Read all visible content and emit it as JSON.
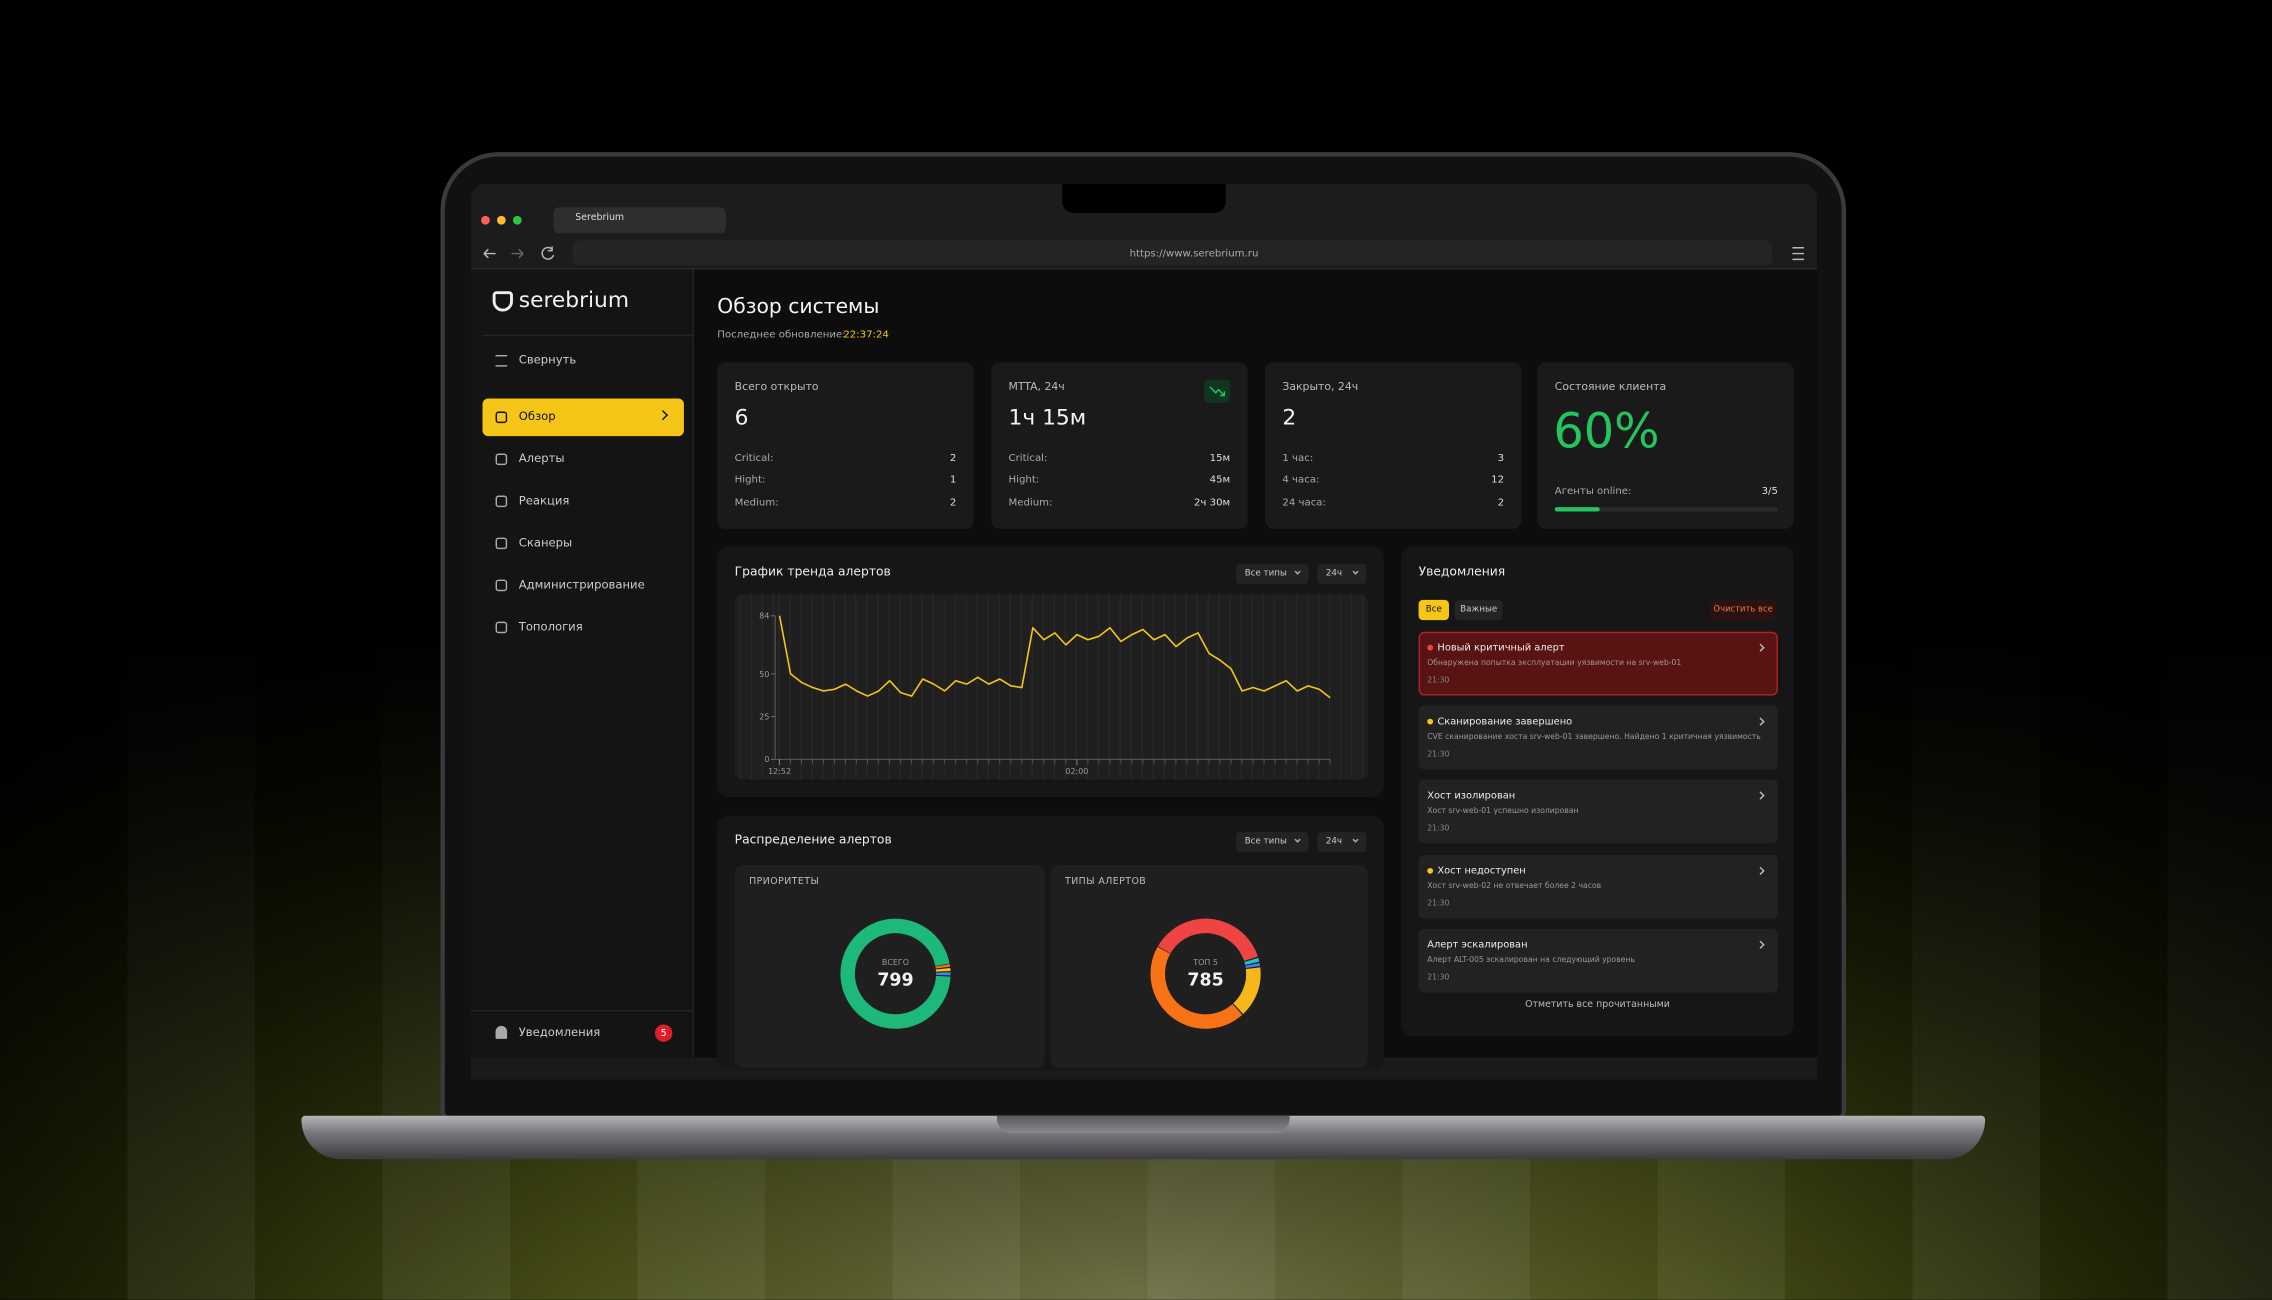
{
  "browser": {
    "tab_title": "Serebrium",
    "url": "https://www.serebrium.ru"
  },
  "sidebar": {
    "logo": "serebrium",
    "collapse": "Свернуть",
    "items": [
      "Обзор",
      "Алерты",
      "Реакция",
      "Сканеры",
      "Администрирование",
      "Топология"
    ],
    "notifications": "Уведомления",
    "badge": 5
  },
  "header": {
    "title": "Обзор системы",
    "updated_label": "Последнее обновление:",
    "updated_time": "22:37:24"
  },
  "cards": [
    {
      "label": "Всего открыто",
      "value": 6,
      "rows": [
        {
          "label": "Critical:",
          "value": 2
        },
        {
          "label": "Hight:",
          "value": 1
        },
        {
          "label": "Medium:",
          "value": 2
        }
      ]
    },
    {
      "label": "MTTA, 24ч",
      "value": "1ч 15м",
      "rows": [
        {
          "label": "Critical:",
          "value": "15м"
        },
        {
          "label": "Hight:",
          "value": "45м"
        },
        {
          "label": "Medium:",
          "value": "2ч 30м"
        }
      ]
    },
    {
      "label": "Закрыто, 24ч",
      "value": 2,
      "rows": [
        {
          "label": "1 час:",
          "value": 3
        },
        {
          "label": "4 часа:",
          "value": 12
        },
        {
          "label": "24 часа:",
          "value": 2
        }
      ]
    }
  ],
  "client": {
    "label": "Состояние клиента",
    "value": "60%",
    "agents_label": "Агенты online:",
    "agents": "3/5"
  },
  "trend": {
    "title": "График тренда алертов",
    "filters": [
      "Все типы",
      "24ч"
    ],
    "color": "#f5c518",
    "ylim": [
      0,
      84
    ],
    "yticks": [
      0,
      25,
      50,
      84
    ],
    "xticks": [
      {
        "value": 0,
        "label": "12:52"
      },
      {
        "value": 27,
        "label": "02:00"
      }
    ],
    "values": [
      84,
      50,
      45,
      42,
      40,
      41,
      44,
      40,
      37,
      40,
      46,
      39,
      37,
      47,
      44,
      40,
      46,
      44,
      48,
      44,
      47,
      43,
      42,
      77,
      70,
      74,
      67,
      73,
      70,
      72,
      77,
      69,
      73,
      76,
      70,
      73,
      66,
      71,
      74,
      62,
      58,
      53,
      40,
      42,
      40,
      43,
      46,
      40,
      43,
      41,
      36
    ]
  },
  "distribution": {
    "title": "Распределение алертов",
    "filters": [
      "Все типы",
      "24ч"
    ],
    "priorities": {
      "title": "ПРИОРИТЕТЫ",
      "center_label": "ВСЕГО",
      "total": 799,
      "segments": [
        {
          "color": "#f97316",
          "value": 9
        },
        {
          "color": "#f5c518",
          "value": 10
        },
        {
          "color": "#3b82f6",
          "value": 10
        },
        {
          "color": "#1db97a",
          "value": 770
        }
      ]
    },
    "types": {
      "title": "ТИПЫ АЛЕРТОВ",
      "center_label": "ТОП 5",
      "total": 785,
      "segments": [
        {
          "color": "#ef4444",
          "value": 290
        },
        {
          "color": "#22c5c5",
          "value": 12
        },
        {
          "color": "#3b82f6",
          "value": 10
        },
        {
          "color": "#f5b71a",
          "value": 120
        },
        {
          "color": "#f97316",
          "value": 353
        }
      ]
    }
  },
  "notifications": {
    "title": "Уведомления",
    "tabs": [
      "Все",
      "Важные"
    ],
    "clear": "Очистить все",
    "items": [
      {
        "title": "Новый критичный алерт",
        "text": "Обнаружена попытка эксплуатации уязвимости на srv-web-01",
        "time": "21:30",
        "dot": "#ef4444",
        "critical": true
      },
      {
        "title": "Сканирование завершено",
        "text": "CVE сканирование хоста srv-web-01 завершено. Найдено 1 критичная уязвимость",
        "time": "21:30",
        "dot": "#f5c518"
      },
      {
        "title": "Хост изолирован",
        "text": "Хост srv-web-01 успешно изолирован",
        "time": "21:30"
      },
      {
        "title": "Хост недоступен",
        "text": "Хост srv-web-02 не отвечает более 2 часов",
        "time": "21:30",
        "dot": "#f5c518"
      },
      {
        "title": "Алерт эскалирован",
        "text": "Алерт ALT-005 эскалирован на следующий уровень",
        "time": "21:30"
      }
    ],
    "mark_all": "Отметить все прочитанными"
  }
}
